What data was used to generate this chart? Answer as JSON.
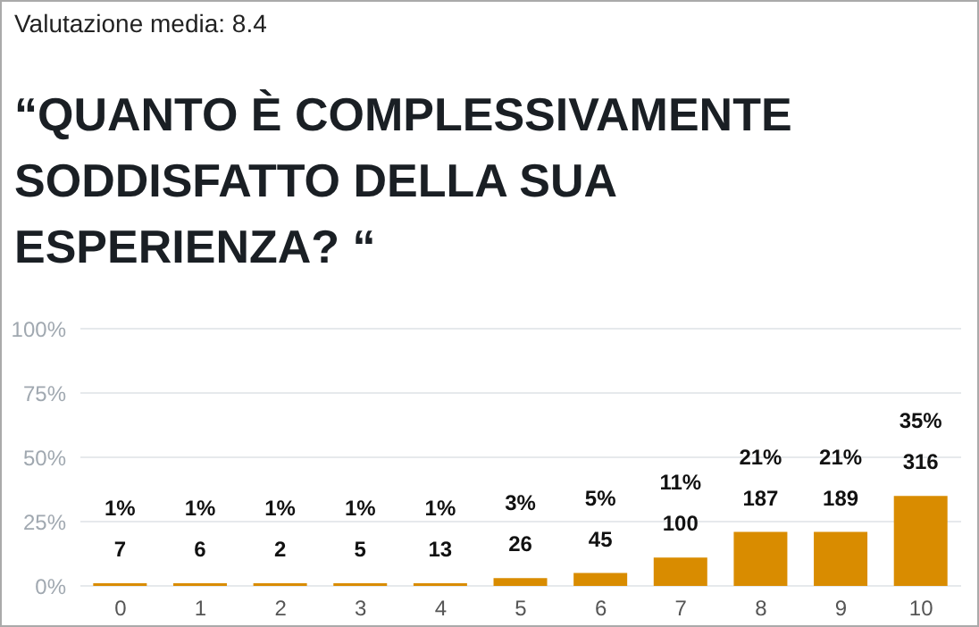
{
  "chart_data": {
    "type": "bar",
    "subtitle": "Valutazione media: 8.4",
    "title": "“QUANTO È COMPLESSIVAMENTE SODDISFATTO DELLA SUA ESPERIENZA? “",
    "categories": [
      "0",
      "1",
      "2",
      "3",
      "4",
      "5",
      "6",
      "7",
      "8",
      "9",
      "10"
    ],
    "values": [
      1,
      1,
      1,
      1,
      1,
      3,
      5,
      11,
      21,
      21,
      35
    ],
    "value_labels": [
      "1%\n7",
      "1%\n6",
      "1%\n2",
      "1%\n5",
      "1%\n13",
      "3%\n26",
      "5%\n45",
      "11%\n100",
      "21%\n187",
      "21%\n189",
      "35%\n316"
    ],
    "color": "#d98c00",
    "ylim": [
      0,
      100
    ],
    "yticks": [
      {
        "value": 0,
        "label": "0%"
      },
      {
        "value": 25,
        "label": "25%"
      },
      {
        "value": 50,
        "label": "50%"
      },
      {
        "value": 75,
        "label": "75%"
      },
      {
        "value": 100,
        "label": "100%"
      }
    ],
    "grid": "y"
  }
}
